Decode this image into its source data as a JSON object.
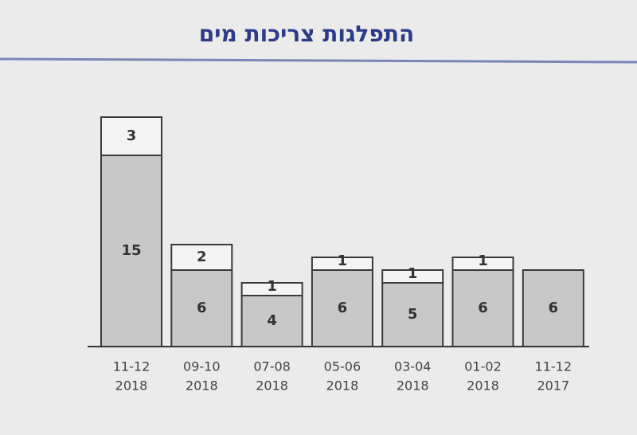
{
  "chart_data": {
    "type": "stacked_bar",
    "title": "התפלגות צריכות מים",
    "categories": [
      [
        "11-12",
        "2018"
      ],
      [
        "09-10",
        "2018"
      ],
      [
        "07-08",
        "2018"
      ],
      [
        "05-06",
        "2018"
      ],
      [
        "03-04",
        "2018"
      ],
      [
        "01-02",
        "2018"
      ],
      [
        "11-12",
        "2017"
      ]
    ],
    "series": [
      {
        "color": "#c8c8c8",
        "values": [
          15,
          6,
          4,
          6,
          5,
          6,
          6
        ]
      },
      {
        "color": "#f4f4f4",
        "values": [
          3,
          2,
          1,
          1,
          1,
          1,
          null
        ]
      }
    ]
  }
}
